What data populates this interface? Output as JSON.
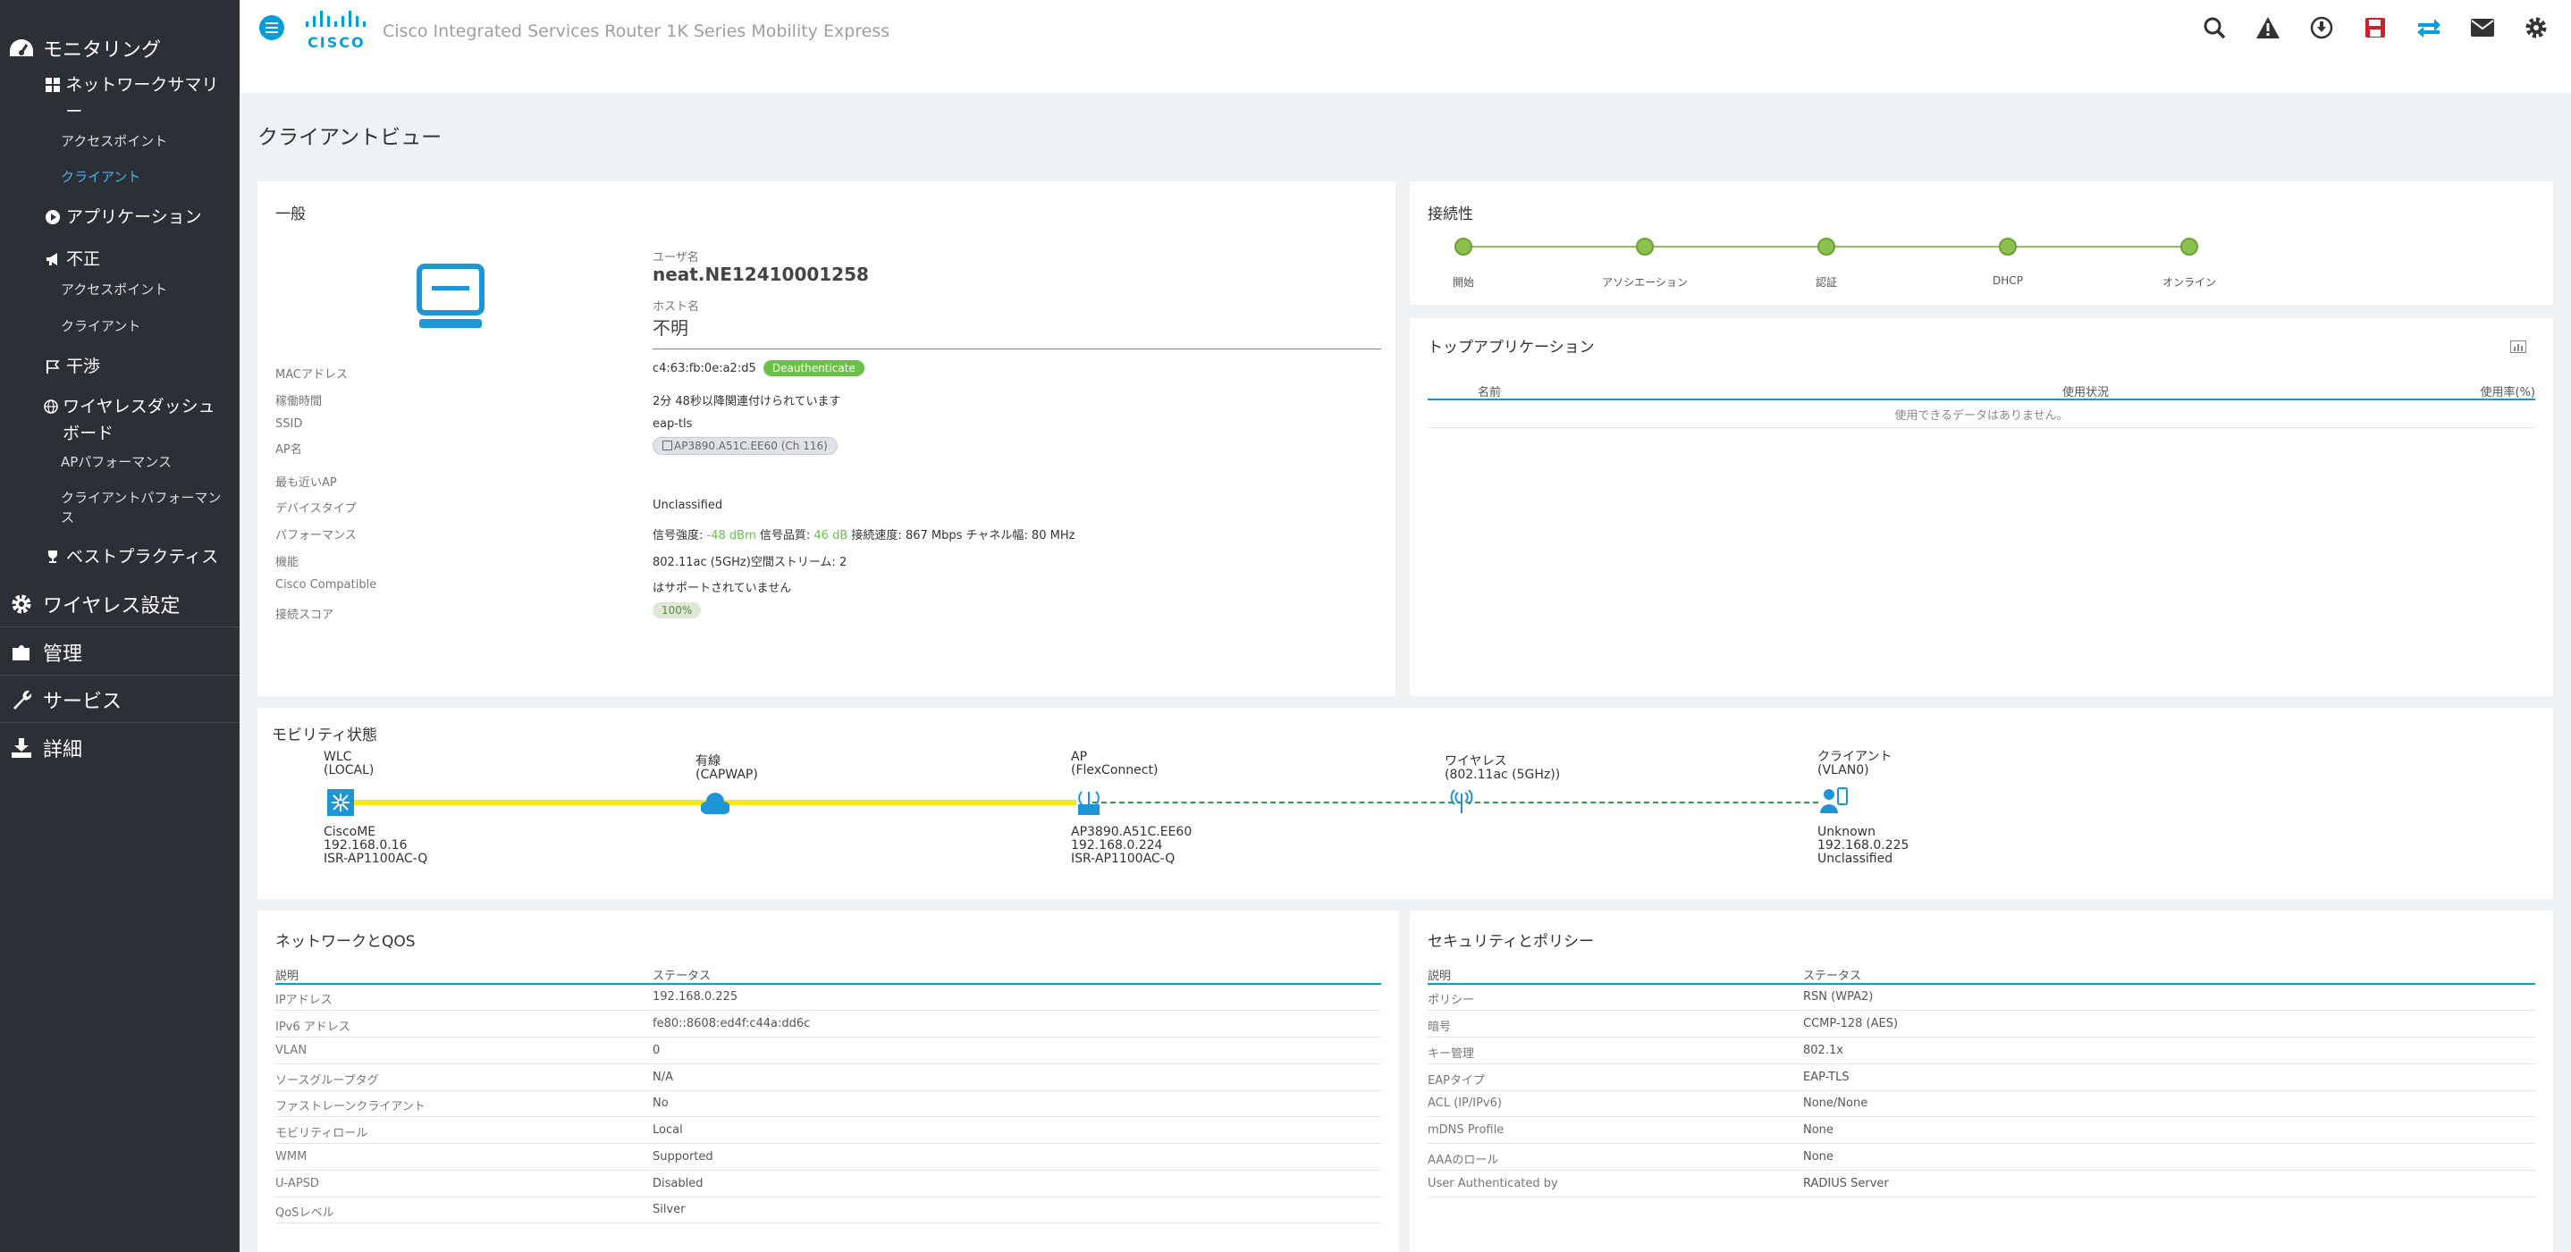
{
  "sidebar": {
    "monitoring": "モニタリング",
    "network_summary": "ネットワークサマリー",
    "access_points": "アクセスポイント",
    "clients": "クライアント",
    "applications": "アプリケーション",
    "rogue": "不正",
    "rogue_aps": "アクセスポイント",
    "rogue_clients": "クライアント",
    "interferers": "干渉",
    "wireless_dashboard": "ワイヤレスダッシュボード",
    "ap_performance": "APパフォーマンス",
    "client_performance": "クライアントパフォーマンス",
    "best_practices": "ベストプラクティス",
    "wireless_settings": "ワイヤレス設定",
    "management": "管理",
    "services": "サービス",
    "advanced": "詳細"
  },
  "header": {
    "logo_text": "CISCO",
    "product": "Cisco Integrated Services Router 1K Series Mobility Express",
    "icons": [
      "search-icon",
      "alert-icon",
      "download-icon",
      "save-icon",
      "transfer-icon",
      "mail-icon",
      "gear-icon"
    ],
    "colors": {
      "accent": "#049fd9",
      "save": "#cf2030"
    }
  },
  "page_title": "クライアントビュー",
  "general": {
    "title": "一般",
    "username_label": "ユーザ名",
    "username": "neat.NE12410001258",
    "hostname_label": "ホスト名",
    "hostname": "不明",
    "rows": [
      {
        "label": "MACアドレス",
        "value": "c4:63:fb:0e:a2:d5"
      },
      {
        "label": "稼働時間",
        "value": "2分 48秒以降関連付けられています"
      },
      {
        "label": "SSID",
        "value": "eap-tls"
      },
      {
        "label": "AP名",
        "value": "AP3890.A51C.EE60 (Ch 116)"
      },
      {
        "label": "最も近いAP",
        "value": ""
      },
      {
        "label": "デバイスタイプ",
        "value": "Unclassified"
      },
      {
        "label": "パフォーマンス",
        "value": ""
      },
      {
        "label": "機能",
        "value": "802.11ac (5GHz)空間ストリーム: 2"
      },
      {
        "label": "Cisco Compatible",
        "value": "はサポートされていません"
      },
      {
        "label": "接続スコア",
        "value": "100%"
      }
    ],
    "deauth_button": "Deauthenticate",
    "perf": {
      "signal_label": "信号強度:",
      "signal_value": "-48 dBm",
      "quality_label": "信号品質:",
      "quality_value": "46 dB",
      "speed_label": "接続速度:",
      "speed_value": "867 Mbps",
      "width_label": "チャネル幅:",
      "width_value": "80 MHz"
    }
  },
  "connectivity": {
    "title": "接続性",
    "steps": [
      "開始",
      "アソシエーション",
      "認証",
      "DHCP",
      "オンライン"
    ]
  },
  "top_apps": {
    "title": "トップアプリケーション",
    "col_name": "名前",
    "col_usage": "使用状況",
    "col_pct": "使用率(%)",
    "empty": "使用できるデータはありません。"
  },
  "mobility": {
    "title": "モビリティ状態",
    "nodes": [
      {
        "top1": "WLC",
        "top2": "(LOCAL)",
        "b1": "CiscoME",
        "b2": "192.168.0.16",
        "b3": "ISR-AP1100AC-Q"
      },
      {
        "top1": "有線",
        "top2": "(CAPWAP)",
        "b1": "",
        "b2": "",
        "b3": ""
      },
      {
        "top1": "AP",
        "top2": "(FlexConnect)",
        "b1": "AP3890.A51C.EE60",
        "b2": "192.168.0.224",
        "b3": "ISR-AP1100AC-Q"
      },
      {
        "top1": "ワイヤレス",
        "top2": "(802.11ac (5GHz))",
        "b1": "",
        "b2": "",
        "b3": ""
      },
      {
        "top1": "クライアント",
        "top2": "(VLAN0)",
        "b1": "Unknown",
        "b2": "192.168.0.225",
        "b3": "Unclassified"
      }
    ]
  },
  "network_qos": {
    "title": "ネットワークとQOS",
    "col_desc": "説明",
    "col_status": "ステータス",
    "rows": [
      {
        "label": "IPアドレス",
        "value": "192.168.0.225"
      },
      {
        "label": "IPv6 アドレス",
        "value": "fe80::8608:ed4f:c44a:dd6c"
      },
      {
        "label": "VLAN",
        "value": "0"
      },
      {
        "label": "ソースグループタグ",
        "value": "N/A"
      },
      {
        "label": "ファストレーンクライアント",
        "value": "No"
      },
      {
        "label": "モビリティロール",
        "value": "Local"
      },
      {
        "label": "WMM",
        "value": "Supported"
      },
      {
        "label": "U-APSD",
        "value": "Disabled"
      },
      {
        "label": "QoSレベル",
        "value": "Silver"
      }
    ]
  },
  "security": {
    "title": "セキュリティとポリシー",
    "col_desc": "説明",
    "col_status": "ステータス",
    "rows": [
      {
        "label": "ポリシー",
        "value": "RSN (WPA2)"
      },
      {
        "label": "暗号",
        "value": "CCMP-128 (AES)"
      },
      {
        "label": "キー管理",
        "value": "802.1x"
      },
      {
        "label": "EAPタイプ",
        "value": "EAP-TLS"
      },
      {
        "label": "ACL (IP/IPv6)",
        "value": "None/None"
      },
      {
        "label": "mDNS Profile",
        "value": "None"
      },
      {
        "label": "AAAのロール",
        "value": "None"
      },
      {
        "label": "User Authenticated by",
        "value": "RADIUS Server"
      }
    ]
  }
}
